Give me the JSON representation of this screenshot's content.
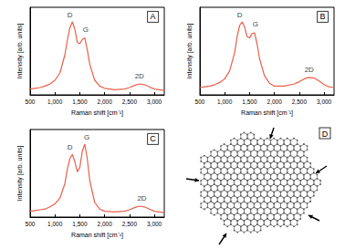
{
  "chart_data": [
    {
      "type": "line",
      "panel": "A",
      "x_label": "Raman shift [cm⁻¹]",
      "y_label": "Intensity [arb. units]",
      "x": [
        500,
        600,
        700,
        800,
        900,
        1000,
        1100,
        1200,
        1250,
        1300,
        1350,
        1400,
        1450,
        1500,
        1550,
        1600,
        1650,
        1700,
        1800,
        1900,
        2000,
        2200,
        2400,
        2500,
        2600,
        2700,
        2800,
        2900,
        3000,
        3100,
        3200
      ],
      "values": [
        0.08,
        0.09,
        0.1,
        0.12,
        0.15,
        0.2,
        0.3,
        0.55,
        0.75,
        0.92,
        1.0,
        0.9,
        0.72,
        0.7,
        0.76,
        0.78,
        0.62,
        0.42,
        0.2,
        0.12,
        0.09,
        0.07,
        0.08,
        0.1,
        0.13,
        0.15,
        0.14,
        0.11,
        0.08,
        0.07,
        0.06
      ],
      "color": "#e8604c",
      "xlim": [
        500,
        3200
      ],
      "xticks": [
        500,
        1000,
        1500,
        2000,
        2500,
        3000
      ],
      "ylim": [
        0,
        1.2
      ],
      "tick_labels": "x",
      "grid": false,
      "annotations": [
        {
          "text": "D",
          "x": 1300,
          "y": 1.1
        },
        {
          "text": "G",
          "x": 1620,
          "y": 0.9
        },
        {
          "text": "2D",
          "x": 2700,
          "y": 0.26
        }
      ]
    },
    {
      "type": "line",
      "panel": "B",
      "x_label": "Raman shift [cm⁻¹]",
      "y_label": "Intensity [arb. units]",
      "x": [
        500,
        600,
        700,
        800,
        900,
        1000,
        1100,
        1200,
        1250,
        1300,
        1350,
        1400,
        1450,
        1500,
        1550,
        1600,
        1650,
        1700,
        1800,
        1900,
        2000,
        2200,
        2400,
        2500,
        2600,
        2700,
        2800,
        2900,
        3000,
        3100,
        3200
      ],
      "values": [
        0.1,
        0.11,
        0.12,
        0.14,
        0.17,
        0.22,
        0.33,
        0.58,
        0.8,
        0.95,
        1.0,
        0.93,
        0.8,
        0.78,
        0.84,
        0.85,
        0.7,
        0.5,
        0.26,
        0.16,
        0.12,
        0.12,
        0.15,
        0.18,
        0.22,
        0.24,
        0.23,
        0.19,
        0.14,
        0.11,
        0.1
      ],
      "color": "#e8604c",
      "xlim": [
        500,
        3200
      ],
      "xticks": [
        500,
        1000,
        1500,
        2000,
        2500,
        3000
      ],
      "ylim": [
        0,
        1.2
      ],
      "tick_labels": "x",
      "grid": false,
      "annotations": [
        {
          "text": "D",
          "x": 1300,
          "y": 1.1
        },
        {
          "text": "G",
          "x": 1620,
          "y": 0.97
        },
        {
          "text": "2D",
          "x": 2700,
          "y": 0.35
        }
      ]
    },
    {
      "type": "line",
      "panel": "C",
      "x_label": "Raman shift [cm⁻¹]",
      "y_label": "Intensity [arb. units]",
      "x": [
        500,
        600,
        700,
        800,
        900,
        1000,
        1100,
        1200,
        1250,
        1300,
        1350,
        1400,
        1450,
        1500,
        1550,
        1600,
        1650,
        1700,
        1800,
        1900,
        2000,
        2200,
        2400,
        2500,
        2600,
        2700,
        2800,
        2900,
        3000,
        3100,
        3200
      ],
      "values": [
        0.08,
        0.09,
        0.1,
        0.11,
        0.14,
        0.18,
        0.26,
        0.46,
        0.66,
        0.8,
        0.86,
        0.76,
        0.62,
        0.68,
        0.9,
        1.0,
        0.8,
        0.5,
        0.2,
        0.11,
        0.08,
        0.07,
        0.08,
        0.1,
        0.13,
        0.15,
        0.14,
        0.11,
        0.08,
        0.07,
        0.06
      ],
      "color": "#e8604c",
      "xlim": [
        500,
        3200
      ],
      "xticks": [
        500,
        1000,
        1500,
        2000,
        2500,
        3000
      ],
      "ylim": [
        0,
        1.2
      ],
      "tick_labels": "x",
      "grid": false,
      "annotations": [
        {
          "text": "D",
          "x": 1300,
          "y": 0.96
        },
        {
          "text": "G",
          "x": 1640,
          "y": 1.1
        },
        {
          "text": "2D",
          "x": 2750,
          "y": 0.26
        }
      ]
    }
  ],
  "diagram": {
    "label": "D"
  }
}
